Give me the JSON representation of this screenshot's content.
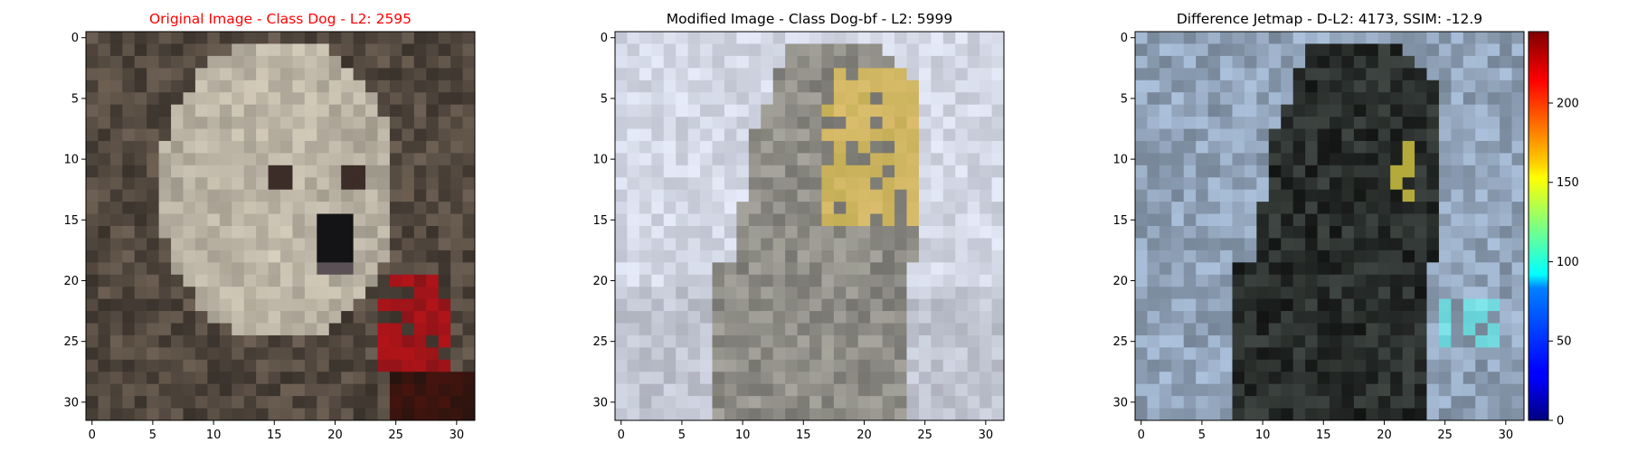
{
  "chart_data": [
    {
      "type": "heatmap",
      "title": "Original Image - Class Dog - L2: 2595",
      "title_color": "#ff0000",
      "xticks": [
        0,
        5,
        10,
        15,
        20,
        25,
        30
      ],
      "yticks": [
        0,
        5,
        10,
        15,
        20,
        25,
        30
      ],
      "xlim": [
        -0.5,
        31.5
      ],
      "ylim": [
        31.5,
        -0.5
      ],
      "grid_size": 32,
      "content": "32x32 pixel image of a white puppy face on a dark brown background"
    },
    {
      "type": "heatmap",
      "title": "Modified Image - Class Dog-bf - L2: 5999",
      "title_color": "#000000",
      "xticks": [
        0,
        5,
        10,
        15,
        20,
        25,
        30
      ],
      "yticks": [
        0,
        5,
        10,
        15,
        20,
        25,
        30
      ],
      "xlim": [
        -0.5,
        31.5
      ],
      "ylim": [
        31.5,
        -0.5
      ],
      "grid_size": 32,
      "content": "32x32 pixel image of a grey/yellow dog shape on a pale bluish-white background"
    },
    {
      "type": "heatmap",
      "title": "Difference Jetmap - D-L2: 4173, SSIM: -12.9",
      "title_color": "#000000",
      "xticks": [
        0,
        5,
        10,
        15,
        20,
        25,
        30
      ],
      "yticks": [
        0,
        5,
        10,
        15,
        20,
        25,
        30
      ],
      "xlim": [
        -0.5,
        31.5
      ],
      "ylim": [
        31.5,
        -0.5
      ],
      "grid_size": 32,
      "colorbar": {
        "colormap": "jet",
        "range": [
          0,
          245
        ],
        "ticks": [
          0,
          50,
          100,
          150,
          200
        ]
      },
      "content": "32x32 difference image: pale blue background, dark dog silhouette, cyan patch near lower right"
    }
  ]
}
